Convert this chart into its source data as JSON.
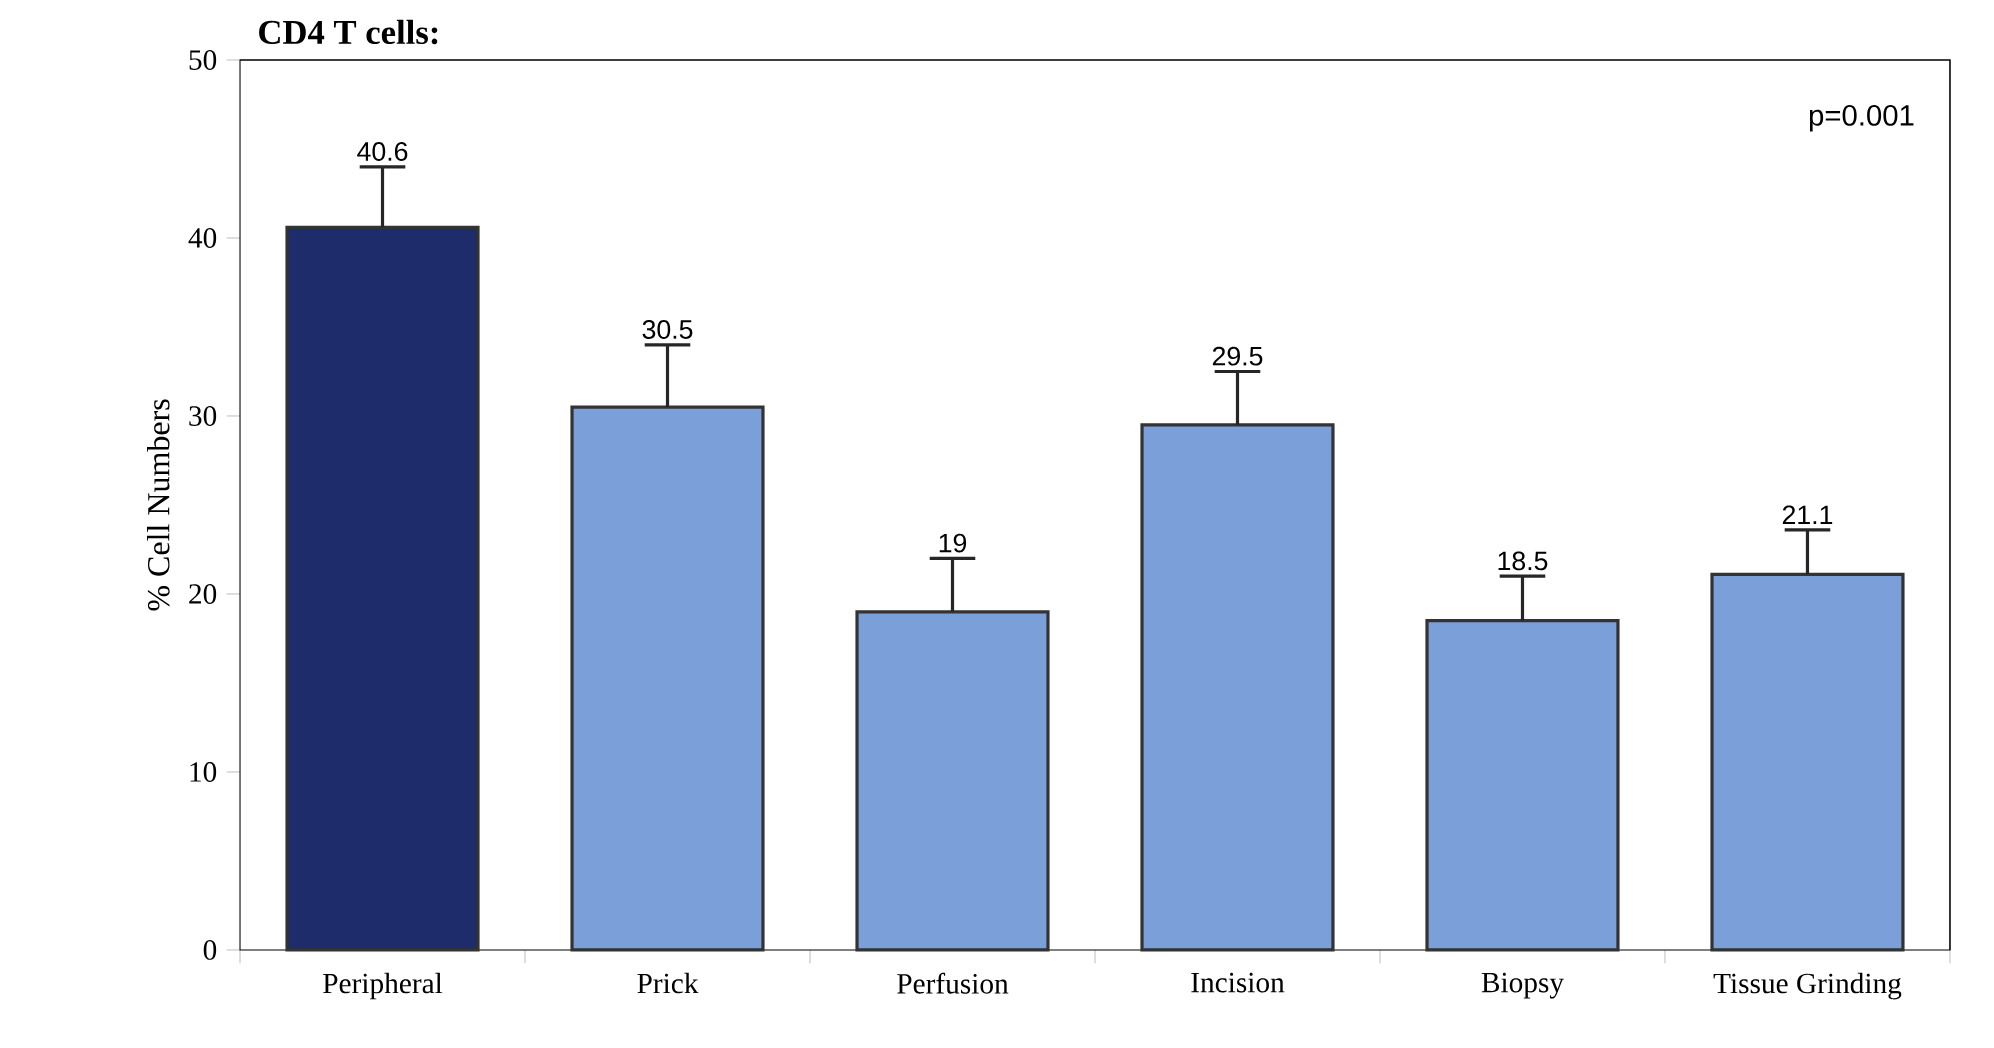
{
  "chart_data": {
    "type": "bar",
    "title": "CD4 T cells:",
    "ylabel": "% Cell Numbers",
    "categories": [
      "Peripheral",
      "Prick",
      "Perfusion",
      "Incision",
      "Biopsy",
      "Tissue Grinding"
    ],
    "values": [
      40.6,
      30.5,
      19,
      29.5,
      18.5,
      21.1
    ],
    "colors": [
      "#1f2c6b",
      "#7b9fd9",
      "#7b9fd9",
      "#7b9fd9",
      "#7b9fd9",
      "#7b9fd9"
    ],
    "errors": [
      [
        40.6,
        44
      ],
      [
        30.5,
        34
      ],
      [
        19,
        22
      ],
      [
        29.5,
        32.5
      ],
      [
        18.5,
        21
      ],
      [
        21.1,
        23.6
      ]
    ],
    "data_labels": true,
    "ylim": [
      0,
      50
    ],
    "yticks": [
      0,
      10,
      20,
      30,
      40,
      50
    ],
    "annotations": [
      "p=0.001"
    ]
  }
}
